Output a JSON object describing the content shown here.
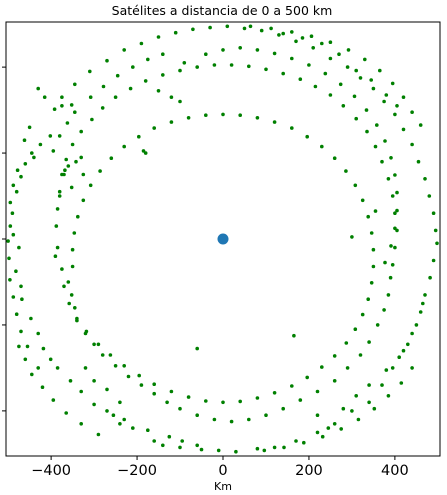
{
  "chart_data": {
    "type": "scatter",
    "title": "Satélites a distancia de 0 a 500 km",
    "xlabel": "Km",
    "ylabel": "",
    "xlim": [
      -505,
      505
    ],
    "ylim": [
      -505,
      505
    ],
    "x_ticks": [
      -400,
      -200,
      0,
      200,
      400
    ],
    "x_tick_labels": [
      "−400",
      "−200",
      "0",
      "200",
      "400"
    ],
    "y_ticks": [
      -400,
      -200,
      0,
      200,
      400
    ],
    "grid": false,
    "legend": "none",
    "colors": {
      "satellite": "#008000",
      "center": "#1f77b4",
      "axes": "#000000"
    },
    "center_point": {
      "x": 0,
      "y": 0
    },
    "satellites": [
      {
        "x": -430,
        "y": 350
      },
      {
        "x": -415,
        "y": 330
      },
      {
        "x": -392,
        "y": 302
      },
      {
        "x": -375,
        "y": 310
      },
      {
        "x": -352,
        "y": 312
      },
      {
        "x": -402,
        "y": 240
      },
      {
        "x": -425,
        "y": 220
      },
      {
        "x": -445,
        "y": 200
      },
      {
        "x": -440,
        "y": 190
      },
      {
        "x": -460,
        "y": 175
      },
      {
        "x": -470,
        "y": 145
      },
      {
        "x": -480,
        "y": 110
      },
      {
        "x": -490,
        "y": 60
      },
      {
        "x": -495,
        "y": 30
      },
      {
        "x": -488,
        "y": 10
      },
      {
        "x": -475,
        "y": -20
      },
      {
        "x": -498,
        "y": -45
      },
      {
        "x": -482,
        "y": -75
      },
      {
        "x": -470,
        "y": -110
      },
      {
        "x": -468,
        "y": -140
      },
      {
        "x": -447,
        "y": -185
      },
      {
        "x": -430,
        "y": -220
      },
      {
        "x": -418,
        "y": -255
      },
      {
        "x": -401,
        "y": -280
      },
      {
        "x": -385,
        "y": -300
      },
      {
        "x": -355,
        "y": -330
      },
      {
        "x": -330,
        "y": -355
      },
      {
        "x": -300,
        "y": -385
      },
      {
        "x": -270,
        "y": -400
      },
      {
        "x": -230,
        "y": -420
      },
      {
        "x": -210,
        "y": -440
      },
      {
        "x": -160,
        "y": -470
      },
      {
        "x": -140,
        "y": -480
      },
      {
        "x": -100,
        "y": -485
      },
      {
        "x": -50,
        "y": -490
      },
      {
        "x": -10,
        "y": -492
      },
      {
        "x": 30,
        "y": -495
      },
      {
        "x": 80,
        "y": -488
      },
      {
        "x": 120,
        "y": -485
      },
      {
        "x": 170,
        "y": -470
      },
      {
        "x": 220,
        "y": -450
      },
      {
        "x": 260,
        "y": -430
      },
      {
        "x": 300,
        "y": -400
      },
      {
        "x": 340,
        "y": -380
      },
      {
        "x": 370,
        "y": -340
      },
      {
        "x": 395,
        "y": -300
      },
      {
        "x": 420,
        "y": -260
      },
      {
        "x": 440,
        "y": -220
      },
      {
        "x": 460,
        "y": -170
      },
      {
        "x": 470,
        "y": -130
      },
      {
        "x": 482,
        "y": -90
      },
      {
        "x": 490,
        "y": -50
      },
      {
        "x": 498,
        "y": -10
      },
      {
        "x": 495,
        "y": 20
      },
      {
        "x": 490,
        "y": 60
      },
      {
        "x": 480,
        "y": 100
      },
      {
        "x": 470,
        "y": 140
      },
      {
        "x": 455,
        "y": 180
      },
      {
        "x": 440,
        "y": 220
      },
      {
        "x": 420,
        "y": 255
      },
      {
        "x": 400,
        "y": 290
      },
      {
        "x": 375,
        "y": 320
      },
      {
        "x": 350,
        "y": 350
      },
      {
        "x": 320,
        "y": 375
      },
      {
        "x": 290,
        "y": 400
      },
      {
        "x": 250,
        "y": 420
      },
      {
        "x": 210,
        "y": 445
      },
      {
        "x": 170,
        "y": 460
      },
      {
        "x": 130,
        "y": 475
      },
      {
        "x": 90,
        "y": 485
      },
      {
        "x": 50,
        "y": 490
      },
      {
        "x": 10,
        "y": 495
      },
      {
        "x": -30,
        "y": 492
      },
      {
        "x": -70,
        "y": 488
      },
      {
        "x": -110,
        "y": 480
      },
      {
        "x": -150,
        "y": 470
      },
      {
        "x": -190,
        "y": 455
      },
      {
        "x": -230,
        "y": 440
      },
      {
        "x": -270,
        "y": 415
      },
      {
        "x": -310,
        "y": 390
      },
      {
        "x": -345,
        "y": 360
      },
      {
        "x": -375,
        "y": 330
      },
      {
        "x": -368,
        "y": 160
      },
      {
        "x": -370,
        "y": 150
      },
      {
        "x": -360,
        "y": 170
      },
      {
        "x": -342,
        "y": 180
      },
      {
        "x": -330,
        "y": 190
      },
      {
        "x": -325,
        "y": 150
      },
      {
        "x": -352,
        "y": 120
      },
      {
        "x": -380,
        "y": 100
      },
      {
        "x": -385,
        "y": -20
      },
      {
        "x": -390,
        "y": -40
      },
      {
        "x": -375,
        "y": -70
      },
      {
        "x": -360,
        "y": -100
      },
      {
        "x": -352,
        "y": -130
      },
      {
        "x": -345,
        "y": -160
      },
      {
        "x": -340,
        "y": -190
      },
      {
        "x": -320,
        "y": -220
      },
      {
        "x": -300,
        "y": -245
      },
      {
        "x": -280,
        "y": -270
      },
      {
        "x": -250,
        "y": -295
      },
      {
        "x": -220,
        "y": -320
      },
      {
        "x": -190,
        "y": -340
      },
      {
        "x": -160,
        "y": -360
      },
      {
        "x": -130,
        "y": -380
      },
      {
        "x": -100,
        "y": -395
      },
      {
        "x": -60,
        "y": -410
      },
      {
        "x": -20,
        "y": -420
      },
      {
        "x": 20,
        "y": -425
      },
      {
        "x": 60,
        "y": -420
      },
      {
        "x": 100,
        "y": -410
      },
      {
        "x": 140,
        "y": -395
      },
      {
        "x": 180,
        "y": -375
      },
      {
        "x": 220,
        "y": -355
      },
      {
        "x": 260,
        "y": -330
      },
      {
        "x": 290,
        "y": -300
      },
      {
        "x": 320,
        "y": -270
      },
      {
        "x": 340,
        "y": -240
      },
      {
        "x": 360,
        "y": -200
      },
      {
        "x": 375,
        "y": -165
      },
      {
        "x": 385,
        "y": -130
      },
      {
        "x": 390,
        "y": -90
      },
      {
        "x": 395,
        "y": -60
      },
      {
        "x": 400,
        "y": -20
      },
      {
        "x": 405,
        "y": 20
      },
      {
        "x": 400,
        "y": 60
      },
      {
        "x": 395,
        "y": 100
      },
      {
        "x": 385,
        "y": 140
      },
      {
        "x": 370,
        "y": 180
      },
      {
        "x": 355,
        "y": 215
      },
      {
        "x": 335,
        "y": 250
      },
      {
        "x": 310,
        "y": 280
      },
      {
        "x": 280,
        "y": 310
      },
      {
        "x": 250,
        "y": 335
      },
      {
        "x": 215,
        "y": 355
      },
      {
        "x": 180,
        "y": 372
      },
      {
        "x": 140,
        "y": 385
      },
      {
        "x": 100,
        "y": 395
      },
      {
        "x": 60,
        "y": 402
      },
      {
        "x": 20,
        "y": 405
      },
      {
        "x": -20,
        "y": 405
      },
      {
        "x": -60,
        "y": 400
      },
      {
        "x": -100,
        "y": 392
      },
      {
        "x": -140,
        "y": 382
      },
      {
        "x": -180,
        "y": 368
      },
      {
        "x": -215,
        "y": 350
      },
      {
        "x": -250,
        "y": 330
      },
      {
        "x": -280,
        "y": 305
      },
      {
        "x": -305,
        "y": 278
      },
      {
        "x": -330,
        "y": 250
      },
      {
        "x": -350,
        "y": 220
      },
      {
        "x": -365,
        "y": 185
      },
      {
        "x": -375,
        "y": 150
      },
      {
        "x": -380,
        "y": 110
      },
      {
        "x": -385,
        "y": 70
      },
      {
        "x": -388,
        "y": 30
      },
      {
        "x": -370,
        "y": -110
      },
      {
        "x": -358,
        "y": -150
      },
      {
        "x": -340,
        "y": -185
      },
      {
        "x": -318,
        "y": -215
      },
      {
        "x": -290,
        "y": -245
      },
      {
        "x": -262,
        "y": -270
      },
      {
        "x": -230,
        "y": -295
      },
      {
        "x": -195,
        "y": -318
      },
      {
        "x": -160,
        "y": -338
      },
      {
        "x": -120,
        "y": -355
      },
      {
        "x": -80,
        "y": -368
      },
      {
        "x": -40,
        "y": -377
      },
      {
        "x": 0,
        "y": -380
      },
      {
        "x": 40,
        "y": -378
      },
      {
        "x": 80,
        "y": -370
      },
      {
        "x": 120,
        "y": -358
      },
      {
        "x": 160,
        "y": -342
      },
      {
        "x": 196,
        "y": -322
      },
      {
        "x": 230,
        "y": -298
      },
      {
        "x": 260,
        "y": -272
      },
      {
        "x": 287,
        "y": -242
      },
      {
        "x": 308,
        "y": -210
      },
      {
        "x": 325,
        "y": -176
      },
      {
        "x": 338,
        "y": -140
      },
      {
        "x": 346,
        "y": -102
      },
      {
        "x": 350,
        "y": -64
      },
      {
        "x": 350,
        "y": -25
      },
      {
        "x": 346,
        "y": 14
      },
      {
        "x": 338,
        "y": 52
      },
      {
        "x": 325,
        "y": 90
      },
      {
        "x": 308,
        "y": 125
      },
      {
        "x": 286,
        "y": 158
      },
      {
        "x": 260,
        "y": 188
      },
      {
        "x": 230,
        "y": 215
      },
      {
        "x": 196,
        "y": 238
      },
      {
        "x": 160,
        "y": 258
      },
      {
        "x": 120,
        "y": 272
      },
      {
        "x": 80,
        "y": 282
      },
      {
        "x": 40,
        "y": 288
      },
      {
        "x": 0,
        "y": 290
      },
      {
        "x": -40,
        "y": 288
      },
      {
        "x": -80,
        "y": 282
      },
      {
        "x": -120,
        "y": 272
      },
      {
        "x": -160,
        "y": 258
      },
      {
        "x": -196,
        "y": 238
      },
      {
        "x": -230,
        "y": 215
      },
      {
        "x": -260,
        "y": 188
      },
      {
        "x": -286,
        "y": 158
      },
      {
        "x": -308,
        "y": 125
      },
      {
        "x": -325,
        "y": 90
      },
      {
        "x": -338,
        "y": 52
      },
      {
        "x": -346,
        "y": 14
      },
      {
        "x": -350,
        "y": -25
      },
      {
        "x": -350,
        "y": -64
      },
      {
        "x": -185,
        "y": 205
      },
      {
        "x": -180,
        "y": 200
      },
      {
        "x": 165,
        "y": -225
      },
      {
        "x": -60,
        "y": -255
      },
      {
        "x": 300,
        "y": 5
      },
      {
        "x": 355,
        "y": 65
      },
      {
        "x": -150,
        "y": 345
      },
      {
        "x": -120,
        "y": 330
      },
      {
        "x": -100,
        "y": 320
      },
      {
        "x": -90,
        "y": 410
      },
      {
        "x": -40,
        "y": 430
      },
      {
        "x": 0,
        "y": 440
      },
      {
        "x": 40,
        "y": 445
      },
      {
        "x": 80,
        "y": 440
      },
      {
        "x": 120,
        "y": 432
      },
      {
        "x": 160,
        "y": 420
      },
      {
        "x": 200,
        "y": 405
      },
      {
        "x": 238,
        "y": 385
      },
      {
        "x": 274,
        "y": 360
      },
      {
        "x": 306,
        "y": 332
      },
      {
        "x": 334,
        "y": 300
      },
      {
        "x": 358,
        "y": 265
      },
      {
        "x": 377,
        "y": 228
      },
      {
        "x": 391,
        "y": 189
      },
      {
        "x": 400,
        "y": 149
      },
      {
        "x": 405,
        "y": 108
      },
      {
        "x": 405,
        "y": 66
      },
      {
        "x": 400,
        "y": 25
      },
      {
        "x": 391,
        "y": -16
      },
      {
        "x": 377,
        "y": -55
      },
      {
        "x": -430,
        "y": -300
      },
      {
        "x": -455,
        "y": -250
      },
      {
        "x": -470,
        "y": -215
      },
      {
        "x": -480,
        "y": -175
      },
      {
        "x": -445,
        "y": -315
      },
      {
        "x": -420,
        "y": -345
      },
      {
        "x": -395,
        "y": -375
      },
      {
        "x": -365,
        "y": -405
      },
      {
        "x": -330,
        "y": -430
      },
      {
        "x": -290,
        "y": -455
      },
      {
        "x": 440,
        "y": -300
      },
      {
        "x": 415,
        "y": -335
      },
      {
        "x": 385,
        "y": -365
      },
      {
        "x": 352,
        "y": -395
      },
      {
        "x": 315,
        "y": -420
      },
      {
        "x": 275,
        "y": -442
      },
      {
        "x": 232,
        "y": -460
      },
      {
        "x": 188,
        "y": -474
      },
      {
        "x": 142,
        "y": -485
      },
      {
        "x": 96,
        "y": -492
      },
      {
        "x": 420,
        "y": 330
      },
      {
        "x": 395,
        "y": 362
      },
      {
        "x": 365,
        "y": 392
      },
      {
        "x": 330,
        "y": 418
      },
      {
        "x": 292,
        "y": 440
      },
      {
        "x": 250,
        "y": 458
      },
      {
        "x": 206,
        "y": 472
      },
      {
        "x": 160,
        "y": 482
      },
      {
        "x": 112,
        "y": 490
      },
      {
        "x": 64,
        "y": 495
      },
      {
        "x": -450,
        "y": 260
      },
      {
        "x": -462,
        "y": 230
      },
      {
        "x": -478,
        "y": 160
      },
      {
        "x": -488,
        "y": 125
      },
      {
        "x": -495,
        "y": 85
      },
      {
        "x": -500,
        "y": -5
      },
      {
        "x": -496,
        "y": -95
      },
      {
        "x": -488,
        "y": -135
      },
      {
        "x": -475,
        "y": -250
      },
      {
        "x": -460,
        "y": -280
      },
      {
        "x": -60,
        "y": -480
      },
      {
        "x": -95,
        "y": -470
      },
      {
        "x": -125,
        "y": -460
      },
      {
        "x": -175,
        "y": -445
      },
      {
        "x": -240,
        "y": -430
      },
      {
        "x": -255,
        "y": -410
      },
      {
        "x": -320,
        "y": -300
      },
      {
        "x": -300,
        "y": -330
      },
      {
        "x": -270,
        "y": -350
      },
      {
        "x": -240,
        "y": -380
      },
      {
        "x": 220,
        "y": -410
      },
      {
        "x": 245,
        "y": -440
      },
      {
        "x": 280,
        "y": -395
      },
      {
        "x": 310,
        "y": -365
      },
      {
        "x": 340,
        "y": -340
      },
      {
        "x": 380,
        "y": -305
      },
      {
        "x": 410,
        "y": -275
      },
      {
        "x": 430,
        "y": -245
      },
      {
        "x": 450,
        "y": -200
      },
      {
        "x": 465,
        "y": -150
      },
      {
        "x": 460,
        "y": 265
      },
      {
        "x": 440,
        "y": 295
      },
      {
        "x": 405,
        "y": 310
      },
      {
        "x": 380,
        "y": 335
      },
      {
        "x": 345,
        "y": 370
      },
      {
        "x": 310,
        "y": 392
      },
      {
        "x": 270,
        "y": 430
      },
      {
        "x": 230,
        "y": 455
      },
      {
        "x": 185,
        "y": 468
      },
      {
        "x": 140,
        "y": 478
      },
      {
        "x": -140,
        "y": 430
      },
      {
        "x": -175,
        "y": 418
      },
      {
        "x": -210,
        "y": 400
      },
      {
        "x": -245,
        "y": 380
      },
      {
        "x": -278,
        "y": 355
      },
      {
        "x": -308,
        "y": 330
      },
      {
        "x": -345,
        "y": 295
      },
      {
        "x": -362,
        "y": 270
      },
      {
        "x": -380,
        "y": 240
      },
      {
        "x": -395,
        "y": 205
      }
    ]
  }
}
